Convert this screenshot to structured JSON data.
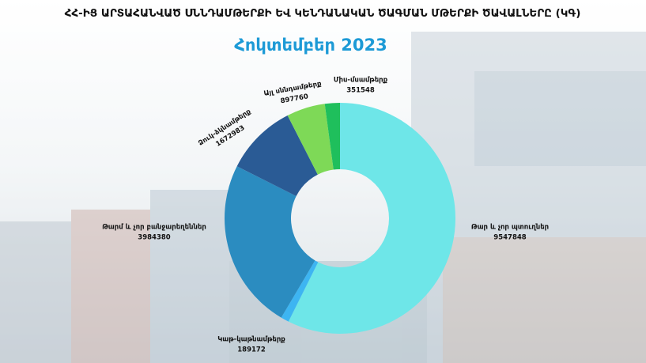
{
  "chart_data": {
    "type": "donut",
    "title": "ՀՀ-ԻՑ ԱՐՏԱՀԱՆՎԱԾ ՍՆՆԴԱՄԹԵՐՔԻ ԵՎ ԿԵՆԴԱՆԱԿԱՆ ԾԱԳՄԱՆ ՄԹԵՐՔԻ ԾԱՎԱԼՆԵՐԸ (ԿԳ)",
    "subtitle": "Հոկտեմբեր 2023",
    "categories": [
      "Թար և չոր պտուղներ",
      "Կաթ-կաթնամթերք",
      "Թարմ և չոր բանջարեղեններ",
      "Ձուկ-ձկնամթերք",
      "Այլ սննդամթերք",
      "Միս-մսամթերք"
    ],
    "values": [
      9547848,
      189172,
      3984380,
      1672983,
      897760,
      351548
    ],
    "colors": [
      "#6ee6e8",
      "#3db5f2",
      "#2b8cc0",
      "#2a5b95",
      "#7ed957",
      "#1fbf5c"
    ]
  }
}
